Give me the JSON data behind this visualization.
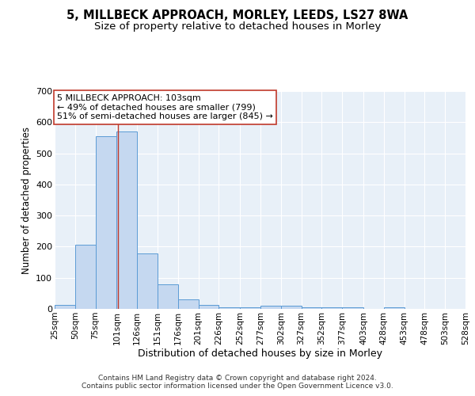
{
  "title": "5, MILLBECK APPROACH, MORLEY, LEEDS, LS27 8WA",
  "subtitle": "Size of property relative to detached houses in Morley",
  "xlabel": "Distribution of detached houses by size in Morley",
  "ylabel": "Number of detached properties",
  "bar_left_edges": [
    25,
    50,
    75,
    101,
    126,
    151,
    176,
    201,
    226,
    252,
    277,
    302,
    327,
    352,
    377,
    403,
    428,
    453,
    478,
    503
  ],
  "bar_widths": [
    25,
    25,
    26,
    25,
    25,
    25,
    25,
    25,
    26,
    25,
    25,
    25,
    25,
    25,
    26,
    25,
    25,
    25,
    25,
    25
  ],
  "bar_heights": [
    12,
    205,
    555,
    570,
    178,
    80,
    30,
    14,
    5,
    5,
    10,
    10,
    5,
    5,
    5,
    0,
    5,
    0,
    0,
    0
  ],
  "bar_color": "#c5d8f0",
  "bar_edge_color": "#5b9bd5",
  "tick_labels": [
    "25sqm",
    "50sqm",
    "75sqm",
    "101sqm",
    "126sqm",
    "151sqm",
    "176sqm",
    "201sqm",
    "226sqm",
    "252sqm",
    "277sqm",
    "302sqm",
    "327sqm",
    "352sqm",
    "377sqm",
    "403sqm",
    "428sqm",
    "453sqm",
    "478sqm",
    "503sqm",
    "528sqm"
  ],
  "vline_x": 103,
  "vline_color": "#c0392b",
  "annotation_line1": "5 MILLBECK APPROACH: 103sqm",
  "annotation_line2": "← 49% of detached houses are smaller (799)",
  "annotation_line3": "51% of semi-detached houses are larger (845) →",
  "annotation_box_color": "#ffffff",
  "annotation_box_edge": "#c0392b",
  "ylim": [
    0,
    700
  ],
  "yticks": [
    0,
    100,
    200,
    300,
    400,
    500,
    600,
    700
  ],
  "xlim": [
    25,
    528
  ],
  "bg_color": "#e8f0f8",
  "footer": "Contains HM Land Registry data © Crown copyright and database right 2024.\nContains public sector information licensed under the Open Government Licence v3.0.",
  "title_fontsize": 10.5,
  "subtitle_fontsize": 9.5,
  "xlabel_fontsize": 9,
  "ylabel_fontsize": 8.5,
  "tick_fontsize": 7.5,
  "annotation_fontsize": 8,
  "footer_fontsize": 6.5
}
